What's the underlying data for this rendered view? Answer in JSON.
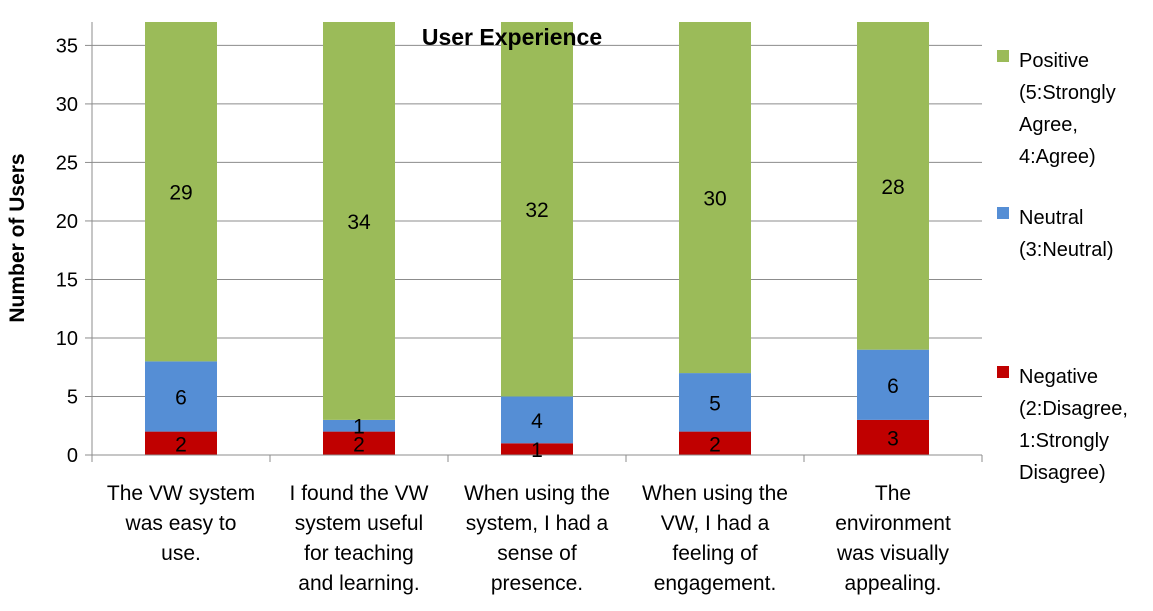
{
  "chart_data": {
    "type": "bar",
    "stacked": true,
    "title": "User Experience",
    "ylabel": "Number of Users",
    "xlabel": "",
    "ylim": [
      0,
      37
    ],
    "yticks": [
      0,
      5,
      10,
      15,
      20,
      25,
      30,
      35
    ],
    "grid": "horizontal",
    "legend_position": "right",
    "categories": [
      [
        "The VW system",
        "was easy to",
        "use."
      ],
      [
        "I found the VW",
        "system useful",
        "for teaching",
        "and learning."
      ],
      [
        "When using the",
        "system, I had a",
        "sense of",
        "presence."
      ],
      [
        "When using the",
        "VW, I had a",
        "feeling of",
        "engagement."
      ],
      [
        "The",
        "environment",
        "was visually",
        "appealing."
      ]
    ],
    "series": [
      {
        "name": [
          "Negative",
          "(2:Disagree,",
          "1:Strongly",
          "Disagree)"
        ],
        "color": "#c00000",
        "values": [
          2,
          2,
          1,
          2,
          3
        ]
      },
      {
        "name": [
          "Neutral",
          "(3:Neutral)"
        ],
        "color": "#558ed5",
        "values": [
          6,
          1,
          4,
          5,
          6
        ]
      },
      {
        "name": [
          "Positive",
          "(5:Strongly",
          "Agree,",
          "4:Agree)"
        ],
        "color": "#9bbb59",
        "values": [
          29,
          34,
          32,
          30,
          28
        ]
      }
    ]
  }
}
